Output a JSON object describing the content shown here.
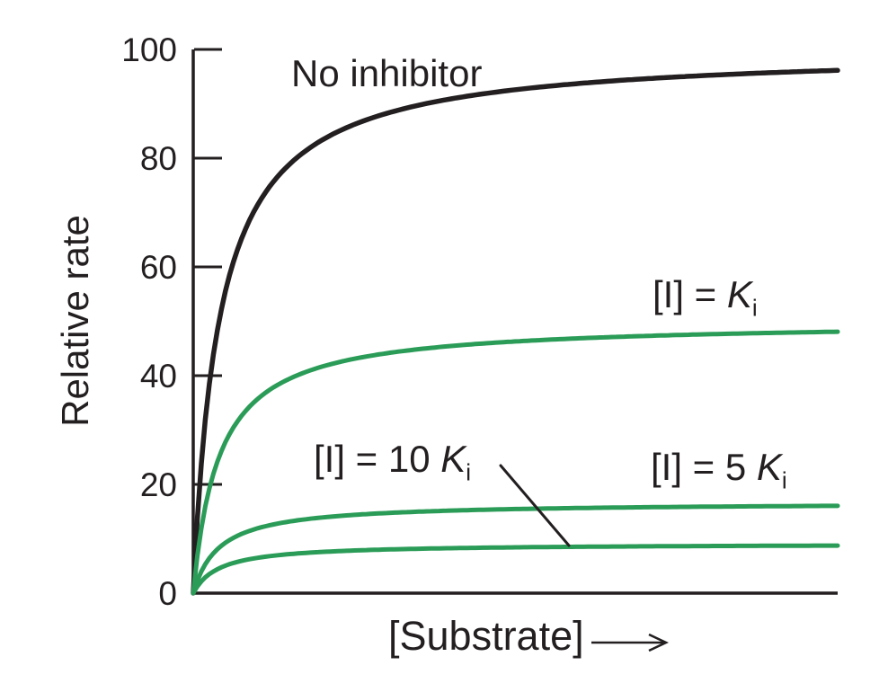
{
  "figure": {
    "description": "Enzyme rate vs substrate concentration with noncompetitive inhibitor",
    "background": "#ffffff",
    "ink_color": "#231f20",
    "inhibitor_curve_color": "#2b9c58"
  },
  "chart_data": {
    "type": "line",
    "title": "",
    "xlabel": "[Substrate]",
    "ylabel": "Relative rate",
    "x_axis": {
      "label": "[Substrate]",
      "arrow_suffix": true,
      "numeric_ticks_shown": false,
      "x_range_in_Km_units": [
        0,
        25
      ]
    },
    "y_axis": {
      "range": [
        0,
        100
      ],
      "ticks": [
        0,
        20,
        40,
        60,
        80,
        100
      ],
      "tick_side": "inward"
    },
    "model": "michaelis-menten",
    "grid": false,
    "legend": "inline-labels",
    "series": [
      {
        "name": "No inhibitor",
        "vmax": 100,
        "plateau_at_right_edge": 95,
        "color": "#231f20",
        "label": {
          "text": "No inhibitor"
        }
      },
      {
        "name": "[I] = Ki",
        "vmax": 50,
        "plateau_at_right_edge": 48,
        "color": "#2b9c58",
        "label": {
          "prefix": "[I] = ",
          "k": "K",
          "sub": "i"
        }
      },
      {
        "name": "[I] = 5 Ki",
        "vmax": 16.7,
        "plateau_at_right_edge": 16,
        "color": "#2b9c58",
        "label": {
          "prefix": "[I] = 5 ",
          "k": "K",
          "sub": "i"
        }
      },
      {
        "name": "[I] = 10 Ki",
        "vmax": 9.1,
        "plateau_at_right_edge": 9,
        "color": "#2b9c58",
        "label": {
          "prefix": "[I] = 10 ",
          "k": "K",
          "sub": "i"
        }
      }
    ],
    "annotations": [
      {
        "type": "pointer_line",
        "from": "[I] = 10 Ki label",
        "to": "[I] = 10 Ki curve",
        "color": "#231f20"
      }
    ]
  }
}
